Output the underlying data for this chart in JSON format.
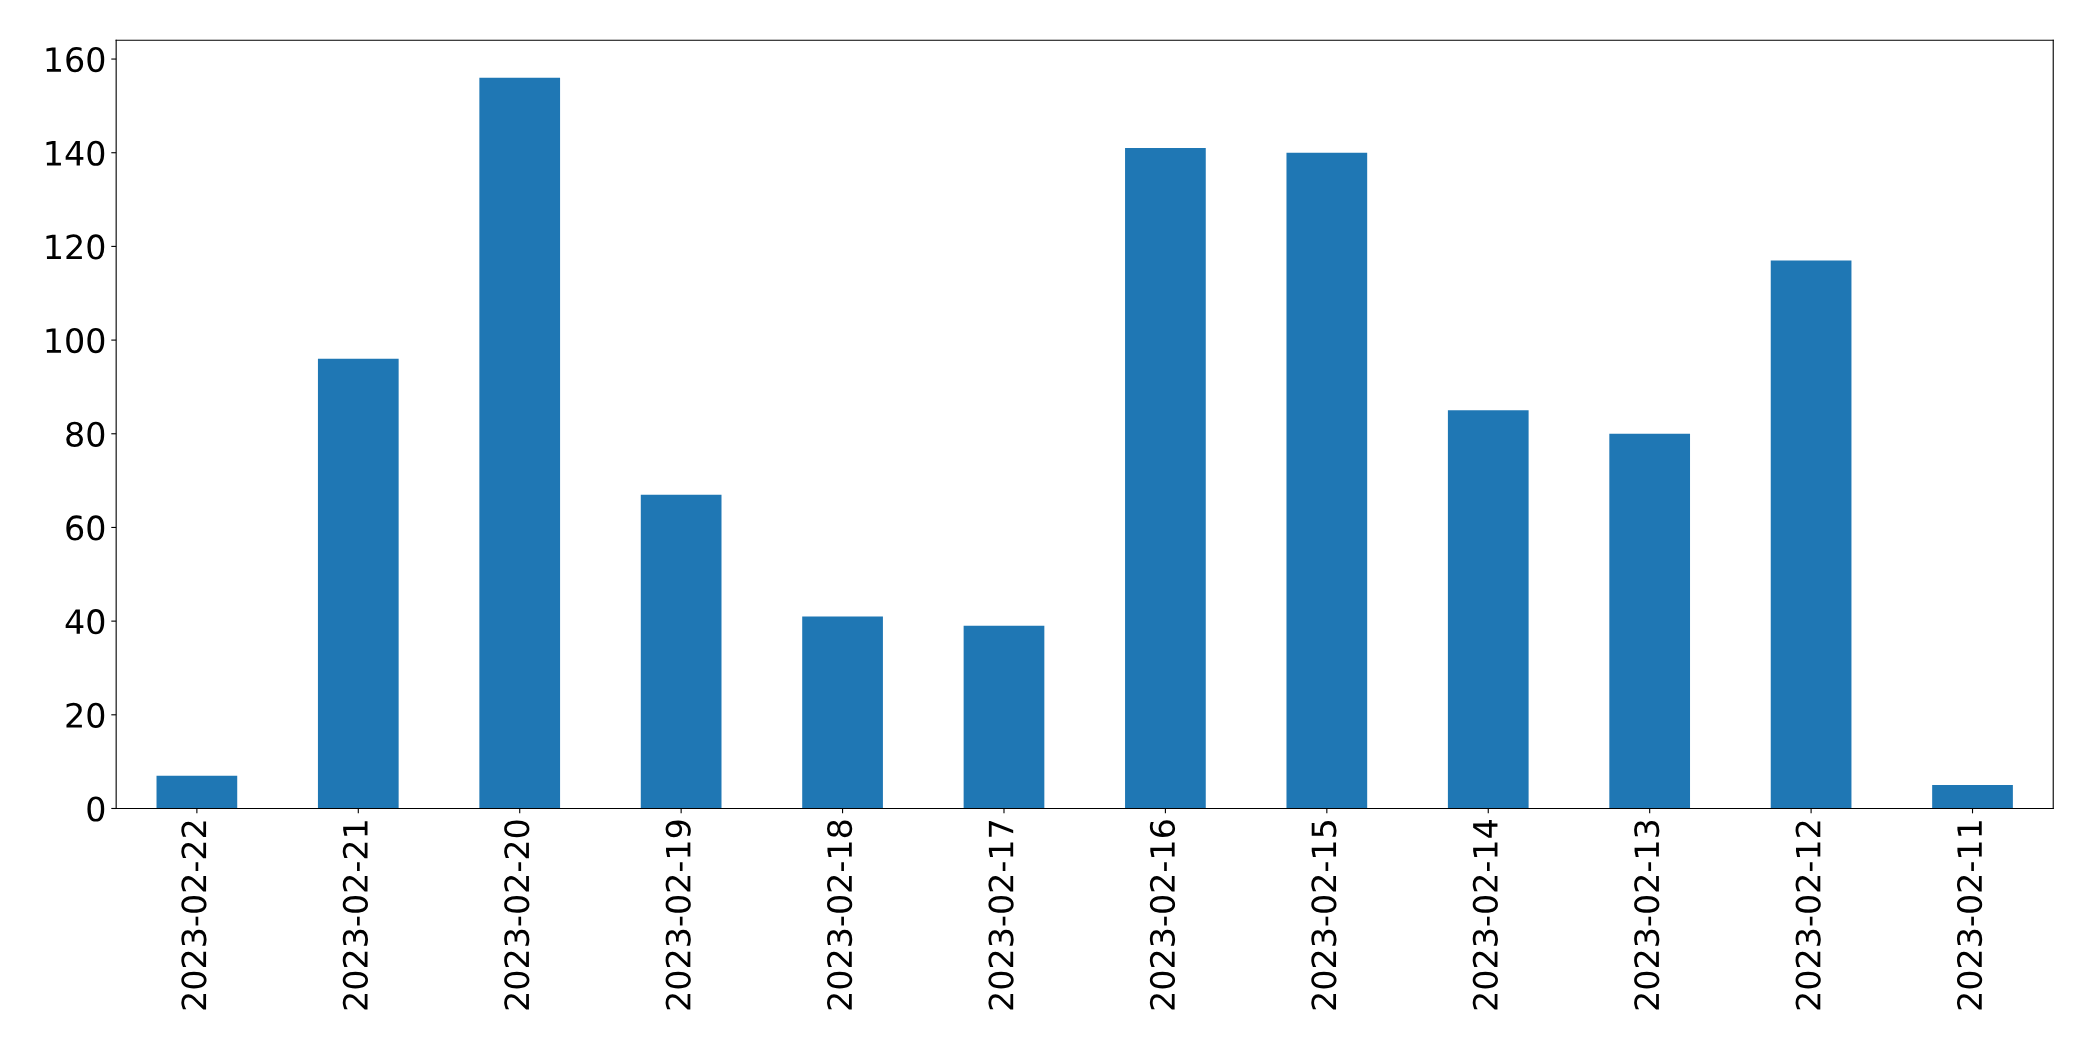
{
  "chart_data": {
    "type": "bar",
    "categories": [
      "2023-02-22",
      "2023-02-21",
      "2023-02-20",
      "2023-02-19",
      "2023-02-18",
      "2023-02-17",
      "2023-02-16",
      "2023-02-15",
      "2023-02-14",
      "2023-02-13",
      "2023-02-12",
      "2023-02-11"
    ],
    "values": [
      7,
      96,
      156,
      67,
      41,
      39,
      141,
      140,
      85,
      80,
      117,
      5
    ],
    "color": "#1f77b4",
    "ylim": [
      0,
      164
    ],
    "yticks": [
      0,
      20,
      40,
      60,
      80,
      100,
      120,
      140,
      160
    ],
    "grid": false
  }
}
